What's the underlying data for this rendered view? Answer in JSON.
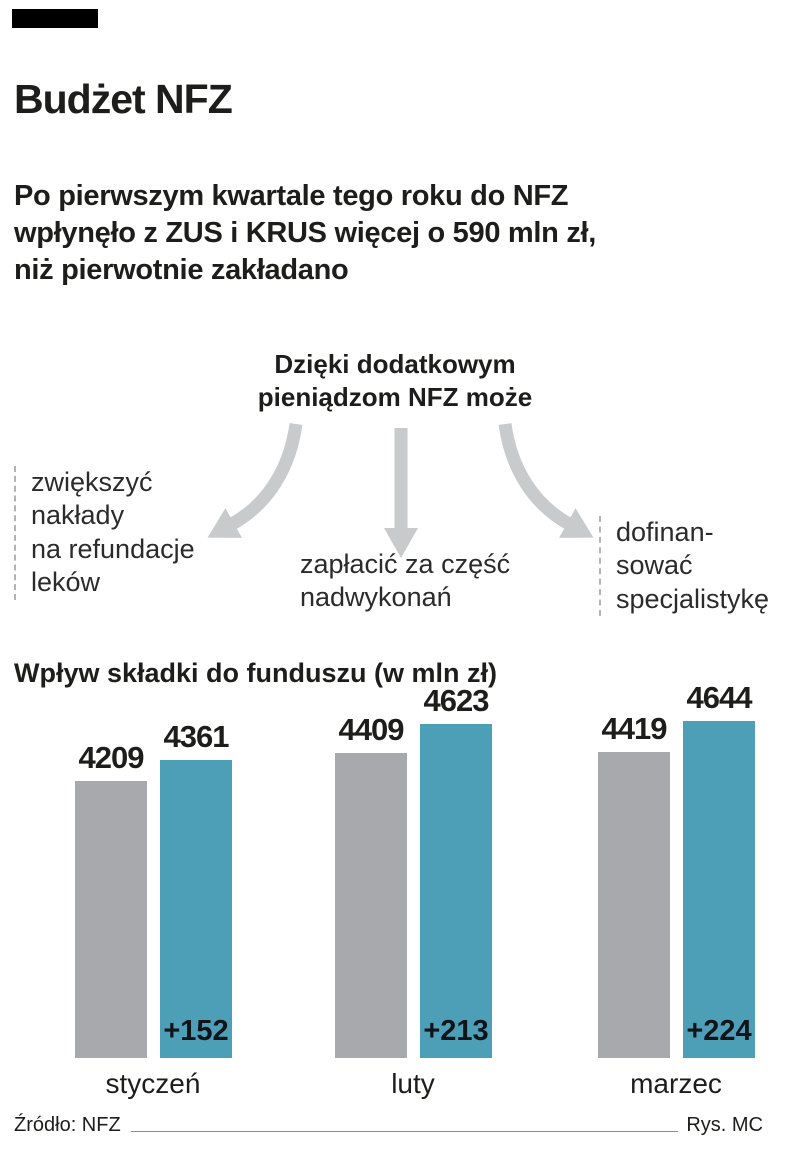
{
  "page": {
    "title": "Budżet NFZ",
    "lead": "Po pierwszym kwartale tego roku do NFZ\nwpłynęło z ZUS i KRUS więcej o 590 mln zł,\nniż pierwotnie zakładano"
  },
  "diagram": {
    "heading": "Dzięki dodatkowym\npieniądzom NFZ może",
    "items": [
      {
        "text": "zwiększyć\nnakłady\nna refundacje\nleków"
      },
      {
        "text": "zapłacić za część\nnadwykonań"
      },
      {
        "text": "dofinan-\nsować\nspecjalistykę"
      }
    ],
    "arrow_icons": [
      "curved-arrow-down-left-icon",
      "arrow-down-icon",
      "curved-arrow-down-right-icon"
    ]
  },
  "chart_data": {
    "type": "bar",
    "title": "Wpływ składki do funduszu (w mln zł)",
    "categories": [
      "styczeń",
      "luty",
      "marzec"
    ],
    "series": [
      {
        "name": "gray",
        "color": "#a7a9ac",
        "values": [
          4209,
          4409,
          4419
        ]
      },
      {
        "name": "teal",
        "color": "#4d9fb8",
        "values": [
          4361,
          4623,
          4644
        ]
      }
    ],
    "differences": [
      "+152",
      "+213",
      "+224"
    ],
    "ylim": [
      2200,
      4700
    ],
    "grid": false,
    "legend": "none",
    "unit": "mln zł"
  },
  "footer": {
    "source": "Źródło: NFZ",
    "credit": "Rys. MC"
  },
  "colors": {
    "bar_gray": "#a7a9ac",
    "bar_teal": "#4d9fb8",
    "arrow_gray": "#c9cacc",
    "text_dark": "#1d1d1b",
    "mark_black": "#000000"
  }
}
